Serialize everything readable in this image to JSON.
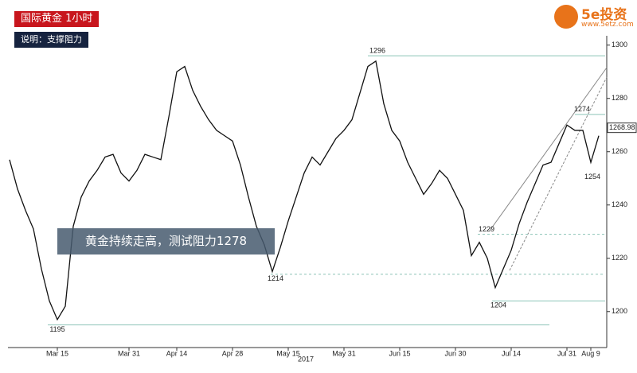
{
  "header": {
    "title": "国际黄金  1小时",
    "subtitle": "说明：支撑阻力"
  },
  "logo": {
    "brand": "5e投资",
    "url": "www.5etz.com"
  },
  "callout": "黄金持续走高，测试阻力1278",
  "chart_data": {
    "type": "line",
    "categories": [
      null,
      null,
      null,
      null,
      null,
      null,
      "Mar 15",
      null,
      null,
      null,
      null,
      null,
      null,
      null,
      null,
      "Mar 31",
      null,
      null,
      null,
      null,
      null,
      "Apr 14",
      null,
      null,
      null,
      null,
      null,
      null,
      "Apr 28",
      null,
      null,
      null,
      null,
      null,
      null,
      "May 15",
      null,
      null,
      null,
      null,
      null,
      null,
      "May 31",
      null,
      null,
      null,
      null,
      null,
      null,
      "Jun 15",
      null,
      null,
      null,
      null,
      null,
      null,
      "Jun 30",
      null,
      null,
      null,
      null,
      null,
      null,
      "Jul 14",
      null,
      null,
      null,
      null,
      null,
      null,
      "Jul 31",
      null,
      null,
      "Aug 9",
      null
    ],
    "year_label": "2017",
    "values": [
      1257,
      1246,
      1238,
      1231,
      1216,
      1204,
      1197,
      1202,
      1232,
      1243,
      1249,
      1253,
      1258,
      1259,
      1252,
      1249,
      1253,
      1259,
      1258,
      1257,
      1273,
      1290,
      1292,
      1283,
      1277,
      1272,
      1268,
      1266,
      1264,
      1255,
      1243,
      1232,
      1225,
      1215,
      1224,
      1234,
      1243,
      1252,
      1258,
      1255,
      1260,
      1265,
      1268,
      1272,
      1282,
      1292,
      1294,
      1278,
      1268,
      1264,
      1256,
      1250,
      1244,
      1248,
      1253,
      1250,
      1244,
      1238,
      1221,
      1226,
      1220,
      1209,
      1216,
      1223,
      1233,
      1241,
      1248,
      1255,
      1256,
      1263,
      1270,
      1268,
      1268,
      1256,
      1266
    ],
    "color": "#111111",
    "last_price": {
      "value": 1268.98,
      "label": "1268.98"
    },
    "ylim": [
      1186.5,
      1303.5
    ],
    "yticks": [
      1200,
      1220,
      1240,
      1260,
      1280,
      1300
    ],
    "annotations": [
      {
        "label": "1296",
        "value": 1296
      },
      {
        "label": "1274",
        "value": 1274
      },
      {
        "label": "1254",
        "value": 1254
      },
      {
        "label": "1229",
        "value": 1229
      },
      {
        "label": "1214",
        "value": 1214
      },
      {
        "label": "1204",
        "value": 1204
      },
      {
        "label": "1195",
        "value": 1195
      }
    ]
  }
}
